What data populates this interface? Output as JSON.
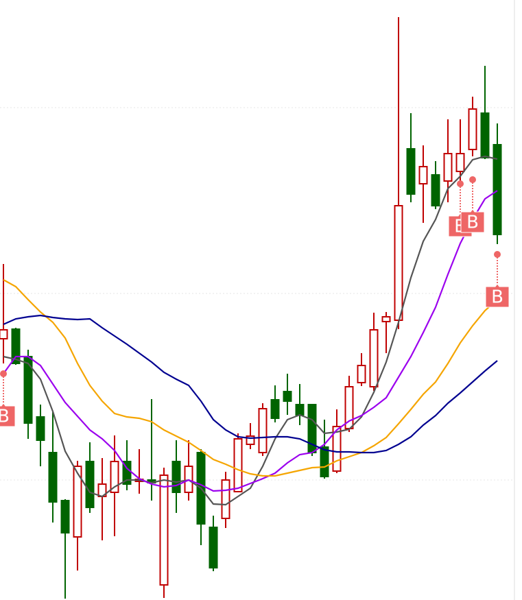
{
  "chart_data": {
    "type": "candlestick",
    "ylim": [
      0,
      875
    ],
    "grid_lines": [
      718,
      447,
      175
    ],
    "up_color": "#c00000",
    "down_color": "#006400",
    "open": [
      381,
      395,
      355,
      267,
      215,
      145,
      92,
      202,
      151,
      157,
      202,
      173,
      175,
      22,
      202,
      157,
      215,
      106,
      119,
      158,
      227,
      215,
      292,
      304,
      285,
      285,
      223,
      188,
      250,
      317,
      311,
      406,
      408,
      658,
      607,
      620,
      611,
      625,
      657,
      710,
      664
    ],
    "high": [
      490,
      397,
      365,
      285,
      275,
      147,
      203,
      230,
      207,
      240,
      233,
      220,
      293,
      193,
      233,
      233,
      220,
      123,
      187,
      243,
      258,
      287,
      313,
      330,
      315,
      285,
      263,
      278,
      327,
      360,
      419,
      420,
      850,
      710,
      663,
      640,
      701,
      701,
      734,
      779,
      695
    ],
    "low": [
      345,
      343,
      235,
      195,
      113,
      2,
      43,
      127,
      87,
      93,
      160,
      155,
      145,
      3,
      127,
      145,
      80,
      42,
      105,
      157,
      220,
      210,
      259,
      270,
      255,
      210,
      177,
      185,
      245,
      312,
      305,
      360,
      395,
      580,
      550,
      570,
      580,
      610,
      647,
      643,
      519
    ],
    "close": [
      394,
      345,
      258,
      233,
      143,
      98,
      195,
      135,
      169,
      202,
      169,
      176,
      171,
      182,
      157,
      195,
      111,
      47,
      175,
      235,
      239,
      279,
      265,
      290,
      270,
      215,
      180,
      253,
      311,
      342,
      394,
      413,
      575,
      592,
      632,
      575,
      651,
      651,
      716,
      645,
      533
    ],
    "lines": [
      {
        "color": "#555555",
        "values": [
          355,
          351,
          345,
          322,
          275,
          217,
          185,
          157,
          151,
          165,
          175,
          175,
          171,
          175,
          172,
          175,
          163,
          140,
          139,
          151,
          163,
          195,
          235,
          263,
          270,
          263,
          243,
          245,
          249,
          267,
          303,
          347,
          405,
          470,
          523,
          555,
          600,
          618,
          642,
          647,
          643
        ]
      },
      {
        "color": "#9b00ee",
        "values": [
          330,
          355,
          355,
          342,
          315,
          288,
          268,
          248,
          235,
          218,
          192,
          177,
          169,
          165,
          167,
          175,
          168,
          159,
          160,
          163,
          170,
          177,
          185,
          200,
          212,
          215,
          227,
          248,
          261,
          269,
          281,
          295,
          325,
          355,
          390,
          427,
          475,
          520,
          555,
          585,
          597
        ]
      },
      {
        "color": "#f5a500",
        "values": [
          467,
          457,
          438,
          420,
          405,
          382,
          345,
          313,
          290,
          272,
          267,
          265,
          260,
          248,
          239,
          230,
          218,
          205,
          198,
          190,
          184,
          181,
          181,
          185,
          189,
          193,
          194,
          203,
          209,
          215,
          225,
          237,
          257,
          278,
          300,
          318,
          345,
          375,
          400,
          422,
          438
        ]
      },
      {
        "color": "#000090",
        "values": [
          402,
          410,
          413,
          415,
          412,
          410,
          409,
          410,
          397,
          385,
          373,
          360,
          347,
          332,
          322,
          313,
          290,
          263,
          248,
          238,
          236,
          237,
          238,
          238,
          235,
          227,
          219,
          216,
          216,
          215,
          215,
          218,
          227,
          238,
          255,
          269,
          287,
          302,
          318,
          334,
          349
        ]
      }
    ],
    "signals": [
      {
        "index": 0,
        "value": 330,
        "label": "B"
      },
      {
        "index": 37,
        "value": 607,
        "label": "B"
      },
      {
        "index": 38,
        "value": 613,
        "label": "B"
      },
      {
        "index": 40,
        "value": 504,
        "label": "B"
      }
    ],
    "signal_color": "#ee6666"
  }
}
